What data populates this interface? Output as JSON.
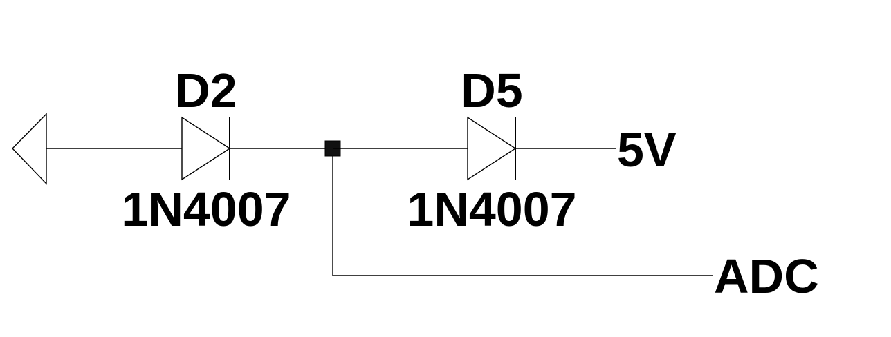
{
  "schematic": {
    "components": [
      {
        "ref": "D2",
        "value": "1N4007"
      },
      {
        "ref": "D5",
        "value": "1N4007"
      }
    ],
    "net_labels": {
      "supply": "5V",
      "adc": "ADC"
    }
  }
}
